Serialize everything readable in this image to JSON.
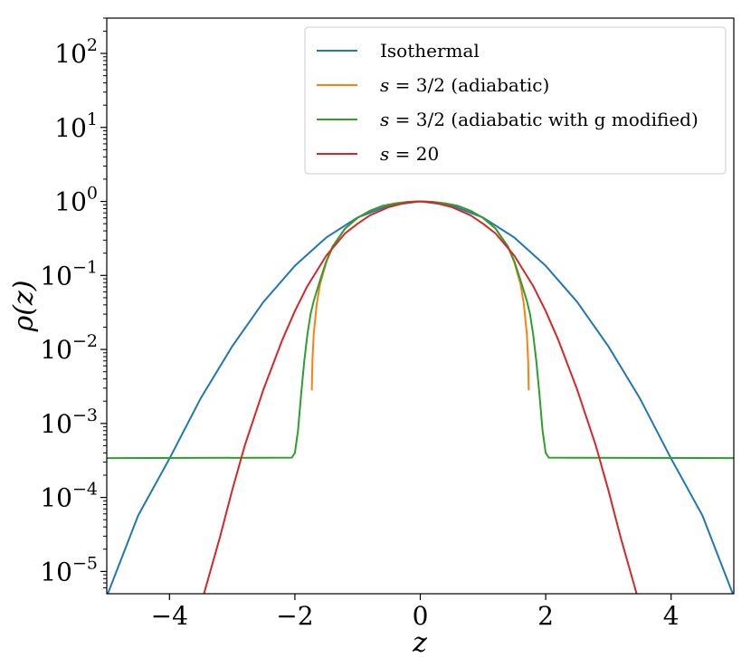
{
  "chart_data": {
    "type": "line",
    "title": "",
    "xlabel": "z",
    "ylabel": "ρ(z)",
    "xlim": [
      -5,
      5
    ],
    "ylim": [
      5e-06,
      300
    ],
    "yscale": "log",
    "grid": false,
    "legend_position": "top-right",
    "xticks": [
      {
        "value": -4,
        "label": "−4"
      },
      {
        "value": -2,
        "label": "−2"
      },
      {
        "value": 0,
        "label": "0"
      },
      {
        "value": 2,
        "label": "2"
      },
      {
        "value": 4,
        "label": "4"
      }
    ],
    "yticks": [
      {
        "exp": 2,
        "base": "10",
        "sup": "2"
      },
      {
        "exp": 1,
        "base": "10",
        "sup": "1"
      },
      {
        "exp": 0,
        "base": "10",
        "sup": "0"
      },
      {
        "exp": -1,
        "base": "10",
        "sup": "−1"
      },
      {
        "exp": -2,
        "base": "10",
        "sup": "−2"
      },
      {
        "exp": -3,
        "base": "10",
        "sup": "−3"
      },
      {
        "exp": -4,
        "base": "10",
        "sup": "−4"
      },
      {
        "exp": -5,
        "base": "10",
        "sup": "−5"
      }
    ],
    "series": [
      {
        "name": "Isothermal",
        "color": "#1f77b4",
        "x": [
          -5,
          -4.5,
          -4,
          -3.5,
          -3,
          -2.5,
          -2,
          -1.5,
          -1,
          -0.5,
          0,
          0.5,
          1,
          1.5,
          2,
          2.5,
          3,
          3.5,
          4,
          4.5,
          5
        ],
        "y": [
          4.6e-06,
          5.7e-05,
          0.000335,
          0.0022,
          0.011,
          0.044,
          0.135,
          0.325,
          0.607,
          0.882,
          1,
          0.882,
          0.607,
          0.325,
          0.135,
          0.044,
          0.011,
          0.0022,
          0.000335,
          5.7e-05,
          4.6e-06
        ]
      },
      {
        "name": "s = 3/2 (adiabatic)",
        "color": "#ff7f0e",
        "x": [
          -1.73,
          -1.72,
          -1.7,
          -1.65,
          -1.6,
          -1.5,
          -1.4,
          -1.2,
          -1,
          -0.8,
          -0.6,
          -0.4,
          -0.2,
          0,
          0.2,
          0.4,
          0.6,
          0.8,
          1,
          1.2,
          1.4,
          1.5,
          1.6,
          1.65,
          1.7,
          1.72,
          1.73
        ],
        "y": [
          0.0028,
          0.007,
          0.016,
          0.042,
          0.075,
          0.15,
          0.24,
          0.43,
          0.6,
          0.75,
          0.87,
          0.94,
          0.985,
          1,
          0.985,
          0.94,
          0.87,
          0.75,
          0.6,
          0.43,
          0.24,
          0.15,
          0.075,
          0.042,
          0.016,
          0.007,
          0.0028
        ]
      },
      {
        "name": "s = 3/2 (adiabatic with g modified)",
        "color": "#2ca02c",
        "x": [
          -5,
          -2.05,
          -2.0,
          -1.95,
          -1.9,
          -1.85,
          -1.8,
          -1.75,
          -1.7,
          -1.6,
          -1.5,
          -1.4,
          -1.2,
          -1,
          -0.8,
          -0.6,
          -0.4,
          -0.2,
          0,
          0.2,
          0.4,
          0.6,
          0.8,
          1,
          1.2,
          1.4,
          1.5,
          1.6,
          1.7,
          1.75,
          1.8,
          1.85,
          1.9,
          1.95,
          2.0,
          2.05,
          5
        ],
        "y": [
          0.00034,
          0.000345,
          0.0004,
          0.0008,
          0.0025,
          0.007,
          0.016,
          0.03,
          0.045,
          0.085,
          0.155,
          0.245,
          0.43,
          0.6,
          0.75,
          0.87,
          0.94,
          0.985,
          1,
          0.985,
          0.94,
          0.87,
          0.75,
          0.6,
          0.43,
          0.245,
          0.155,
          0.085,
          0.045,
          0.03,
          0.016,
          0.007,
          0.0025,
          0.0008,
          0.0004,
          0.000345,
          0.00034
        ]
      },
      {
        "name": "s = 20",
        "color": "#d62728",
        "x": [
          -3.45,
          -3.2,
          -3,
          -2.8,
          -2.5,
          -2.2,
          -2,
          -1.8,
          -1.5,
          -1.2,
          -1,
          -0.8,
          -0.5,
          -0.2,
          0,
          0.2,
          0.5,
          0.8,
          1,
          1.2,
          1.5,
          1.8,
          2,
          2.2,
          2.5,
          2.8,
          3,
          3.2,
          3.45
        ],
        "y": [
          5e-06,
          2.8e-05,
          0.000125,
          0.0005,
          0.0029,
          0.0135,
          0.033,
          0.072,
          0.185,
          0.37,
          0.5,
          0.65,
          0.84,
          0.975,
          1,
          0.975,
          0.84,
          0.65,
          0.5,
          0.37,
          0.185,
          0.072,
          0.033,
          0.0135,
          0.0029,
          0.0005,
          0.000125,
          2.8e-05,
          5e-06
        ]
      }
    ],
    "legend": [
      {
        "name": "Isothermal",
        "color": "#1f77b4",
        "parts": [
          {
            "t": "Isothermal",
            "i": false
          }
        ]
      },
      {
        "name": "s = 3/2 (adiabatic)",
        "color": "#ff7f0e",
        "parts": [
          {
            "t": "s",
            "i": true
          },
          {
            "t": " = 3/2 (adiabatic)",
            "i": false
          }
        ]
      },
      {
        "name": "s = 3/2 (adiabatic with g modified)",
        "color": "#2ca02c",
        "parts": [
          {
            "t": "s",
            "i": true
          },
          {
            "t": " = 3/2 (adiabatic with g modified)",
            "i": false
          }
        ]
      },
      {
        "name": "s = 20",
        "color": "#d62728",
        "parts": [
          {
            "t": "s",
            "i": true
          },
          {
            "t": " = 20",
            "i": false
          }
        ]
      }
    ]
  }
}
